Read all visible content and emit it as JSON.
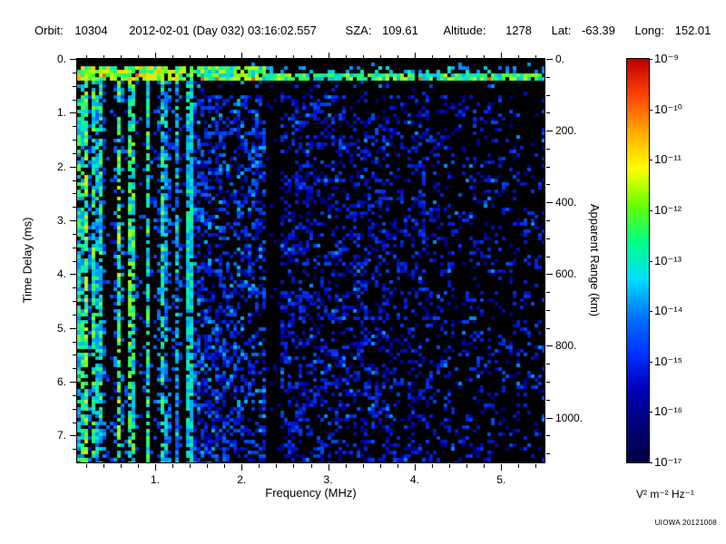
{
  "header": {
    "orbit_label": "Orbit:",
    "orbit": "10304",
    "datetime": "2012-02-01 (Day 032) 03:16:02.557",
    "sza_label": "SZA:",
    "sza": "109.61",
    "altitude_label": "Altitude:",
    "altitude": "1278",
    "lat_label": "Lat:",
    "lat": "-63.39",
    "long_label": "Long:",
    "long": "152.01"
  },
  "chart_data": {
    "type": "heatmap",
    "title": "",
    "xlabel": "Frequency (MHz)",
    "ylabel": "Time Delay (ms)",
    "y2label": "Apparent Range (km)",
    "xlim": [
      0.1,
      5.5
    ],
    "ylim": [
      0,
      7.5
    ],
    "y_inverted": true,
    "y2lim": [
      0,
      1125
    ],
    "xticks": [
      1,
      2,
      3,
      4,
      5
    ],
    "xtick_labels": [
      "1.",
      "2.",
      "3.",
      "4.",
      "5."
    ],
    "xtick_minor_step": 0.2,
    "yticks": [
      0,
      1,
      2,
      3,
      4,
      5,
      6,
      7
    ],
    "ytick_labels": [
      "0.",
      "1.",
      "2.",
      "3.",
      "4.",
      "5.",
      "6.",
      "7."
    ],
    "ytick_minor_step": 0.25,
    "y2ticks": [
      0,
      200,
      400,
      600,
      800,
      1000
    ],
    "y2tick_labels": [
      "0.",
      "200.",
      "400.",
      "600.",
      "800.",
      "1000."
    ],
    "y2tick_minor_step": 50,
    "grid": false,
    "colorbar": {
      "scale": "log",
      "max_label": "10⁻⁹",
      "min_label": "10⁻¹⁷",
      "labels": [
        "10⁻⁹",
        "10⁻¹⁰",
        "10⁻¹¹",
        "10⁻¹²",
        "10⁻¹³",
        "10⁻¹⁴",
        "10⁻¹⁵",
        "10⁻¹⁶",
        "10⁻¹⁷"
      ],
      "units": "V² m⁻² Hz⁻¹",
      "colors": [
        "#bb0000",
        "#ff4400",
        "#ffaa00",
        "#ffff00",
        "#66ff00",
        "#00ff88",
        "#00ddff",
        "#0077ff",
        "#0033ff",
        "#0000bb",
        "#000077",
        "#000044"
      ]
    },
    "features": {
      "description": "AIS ionogram spectrogram: sparse blue speckle noise over black background, density decreasing with frequency",
      "bright_echo_band_ms": [
        0.13,
        0.42
      ],
      "low_freq_vertical_stripes_mhz": [
        0.1,
        1.32
      ],
      "bright_cyan_stripe_mhz": [
        1.36,
        1.45
      ],
      "quiet_dark_band_mhz": [
        2.28,
        2.46
      ],
      "background_color": "#000000"
    }
  },
  "credit": "UIOWA 20121008"
}
